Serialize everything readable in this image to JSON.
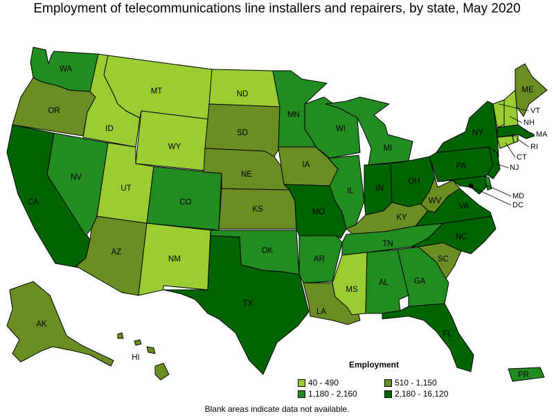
{
  "title": "Employment of telecommunications line installers and repairers, by state, May 2020",
  "legend": {
    "title": "Employment",
    "items": [
      {
        "label": "40 - 490",
        "color": "#9acd32"
      },
      {
        "label": "510 - 1,150",
        "color": "#6b8e23"
      },
      {
        "label": "1,180 - 2,160",
        "color": "#228b22"
      },
      {
        "label": "2,180 - 16,120",
        "color": "#006400"
      }
    ]
  },
  "footnote": "Blank areas indicate data not available.",
  "states": [
    {
      "abbr": "WA",
      "class": 2
    },
    {
      "abbr": "OR",
      "class": 1
    },
    {
      "abbr": "CA",
      "class": 3
    },
    {
      "abbr": "ID",
      "class": 0
    },
    {
      "abbr": "NV",
      "class": 2
    },
    {
      "abbr": "MT",
      "class": 0
    },
    {
      "abbr": "WY",
      "class": 0
    },
    {
      "abbr": "UT",
      "class": 0
    },
    {
      "abbr": "AZ",
      "class": 1
    },
    {
      "abbr": "CO",
      "class": 2
    },
    {
      "abbr": "NM",
      "class": 0
    },
    {
      "abbr": "ND",
      "class": 0
    },
    {
      "abbr": "SD",
      "class": 1
    },
    {
      "abbr": "NE",
      "class": 1
    },
    {
      "abbr": "KS",
      "class": 1
    },
    {
      "abbr": "OK",
      "class": 2
    },
    {
      "abbr": "TX",
      "class": 3
    },
    {
      "abbr": "MN",
      "class": 2
    },
    {
      "abbr": "IA",
      "class": 1
    },
    {
      "abbr": "MO",
      "class": 3
    },
    {
      "abbr": "AR",
      "class": 2
    },
    {
      "abbr": "LA",
      "class": 1
    },
    {
      "abbr": "WI",
      "class": 2
    },
    {
      "abbr": "IL",
      "class": 2
    },
    {
      "abbr": "MI",
      "class": 2
    },
    {
      "abbr": "IN",
      "class": 3
    },
    {
      "abbr": "OH",
      "class": 3
    },
    {
      "abbr": "KY",
      "class": 1
    },
    {
      "abbr": "TN",
      "class": 2
    },
    {
      "abbr": "MS",
      "class": 0
    },
    {
      "abbr": "AL",
      "class": 2
    },
    {
      "abbr": "GA",
      "class": 2
    },
    {
      "abbr": "FL",
      "class": 3
    },
    {
      "abbr": "SC",
      "class": 1
    },
    {
      "abbr": "NC",
      "class": 3
    },
    {
      "abbr": "VA",
      "class": 3
    },
    {
      "abbr": "WV",
      "class": 1
    },
    {
      "abbr": "PA",
      "class": 3
    },
    {
      "abbr": "NY",
      "class": 3
    },
    {
      "abbr": "NJ",
      "class": 3
    },
    {
      "abbr": "MD",
      "class": 3
    },
    {
      "abbr": "DE",
      "class": 2
    },
    {
      "abbr": "DC",
      "class": 3
    },
    {
      "abbr": "ME",
      "class": 1
    },
    {
      "abbr": "VT",
      "class": 0
    },
    {
      "abbr": "NH",
      "class": 0
    },
    {
      "abbr": "MA",
      "class": 3
    },
    {
      "abbr": "RI",
      "class": 0
    },
    {
      "abbr": "CT",
      "class": 0
    },
    {
      "abbr": "AK",
      "class": 1
    },
    {
      "abbr": "HI",
      "class": 1
    },
    {
      "abbr": "PR",
      "class": 2
    }
  ]
}
